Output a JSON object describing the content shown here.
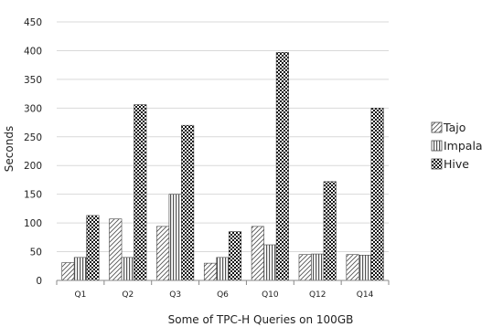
{
  "chart_data": {
    "type": "bar",
    "categories": [
      "Q1",
      "Q2",
      "Q3",
      "Q6",
      "Q10",
      "Q12",
      "Q14"
    ],
    "series": [
      {
        "name": "Tajo",
        "values": [
          31,
          107,
          94,
          30,
          94,
          45,
          45
        ],
        "pattern": "diagonal-hatch"
      },
      {
        "name": "Impala",
        "values": [
          40,
          40,
          150,
          40,
          62,
          46,
          44
        ],
        "pattern": "vertical-stripes"
      },
      {
        "name": "Hive",
        "values": [
          113,
          306,
          270,
          85,
          397,
          172,
          300
        ],
        "pattern": "checker"
      }
    ],
    "xlabel": "Some of TPC-H Queries on 100GB",
    "ylabel": "Seconds",
    "ylim": [
      0,
      450
    ],
    "yticks": [
      0,
      50,
      100,
      150,
      200,
      250,
      300,
      350,
      400,
      450
    ],
    "grid": true,
    "legend": "right"
  }
}
